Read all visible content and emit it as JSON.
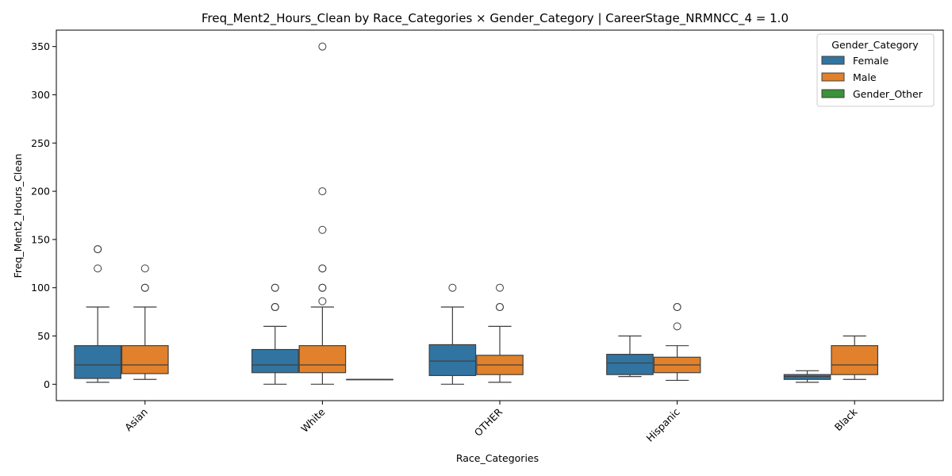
{
  "chart_data": {
    "type": "box",
    "title": "Freq_Ment2_Hours_Clean by Race_Categories × Gender_Category | CareerStage_NRMNCC_4 = 1.0",
    "xlabel": "Race_Categories",
    "ylabel": "Freq_Ment2_Hours_Clean",
    "ylim": [
      -17,
      367
    ],
    "yticks": [
      0,
      50,
      100,
      150,
      200,
      250,
      300,
      350
    ],
    "categories": [
      "Asian",
      "White",
      "OTHER",
      "Hispanic",
      "Black"
    ],
    "grid": false,
    "legend": {
      "title": "Gender_Category",
      "position": "top-right",
      "entries": [
        "Female",
        "Male",
        "Gender_Other"
      ]
    },
    "colors": {
      "Female": "#3274a1",
      "Male": "#e1812c",
      "Gender_Other": "#3a923a"
    },
    "series": [
      {
        "name": "Female",
        "boxes": [
          {
            "category": "Asian",
            "whislo": 2,
            "q1": 6,
            "med": 20,
            "q3": 40,
            "whishi": 80,
            "fliers": [
              120,
              140,
              140
            ]
          },
          {
            "category": "White",
            "whislo": 0,
            "q1": 12,
            "med": 20,
            "q3": 36,
            "whishi": 60,
            "fliers": [
              80,
              80,
              80,
              100,
              100
            ]
          },
          {
            "category": "OTHER",
            "whislo": 0,
            "q1": 9,
            "med": 24,
            "q3": 41,
            "whishi": 80,
            "fliers": [
              100
            ]
          },
          {
            "category": "Hispanic",
            "whislo": 8,
            "q1": 10,
            "med": 22,
            "q3": 31,
            "whishi": 50,
            "fliers": []
          },
          {
            "category": "Black",
            "whislo": 2,
            "q1": 5,
            "med": 8,
            "q3": 10,
            "whishi": 14,
            "fliers": []
          }
        ]
      },
      {
        "name": "Male",
        "boxes": [
          {
            "category": "Asian",
            "whislo": 5,
            "q1": 11,
            "med": 20,
            "q3": 40,
            "whishi": 80,
            "fliers": [
              100,
              100,
              120
            ]
          },
          {
            "category": "White",
            "whislo": 0,
            "q1": 12,
            "med": 20,
            "q3": 40,
            "whishi": 80,
            "fliers": [
              86,
              100,
              100,
              120,
              120,
              160,
              200,
              350
            ]
          },
          {
            "category": "OTHER",
            "whislo": 2,
            "q1": 10,
            "med": 20,
            "q3": 30,
            "whishi": 60,
            "fliers": [
              80,
              80,
              100
            ]
          },
          {
            "category": "Hispanic",
            "whislo": 4,
            "q1": 12,
            "med": 20,
            "q3": 28,
            "whishi": 40,
            "fliers": [
              60,
              80,
              80
            ]
          },
          {
            "category": "Black",
            "whislo": 5,
            "q1": 10,
            "med": 20,
            "q3": 40,
            "whishi": 50,
            "fliers": []
          }
        ]
      },
      {
        "name": "Gender_Other",
        "boxes": [
          {
            "category": "White",
            "whislo": 5,
            "q1": 5,
            "med": 5,
            "q3": 5,
            "whishi": 5,
            "fliers": []
          }
        ]
      }
    ]
  }
}
